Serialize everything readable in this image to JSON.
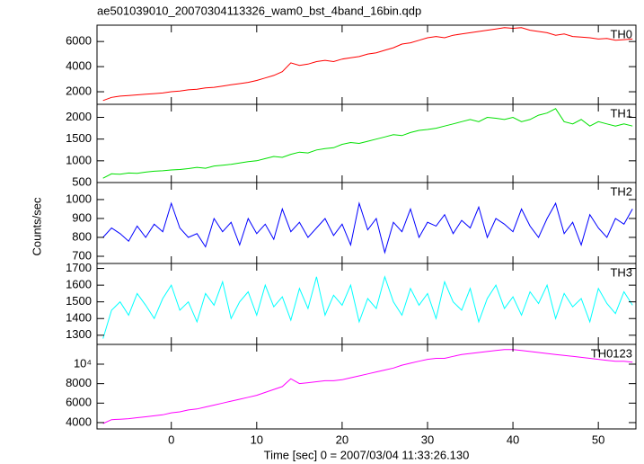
{
  "chart_data": {
    "type": "line",
    "title": "ae501039010_20070304113326_wam0_bst_4band_16bin.qdp",
    "xlabel": "Time [sec] 0 = 2007/03/04 11:33:26.130",
    "ylabel": "Counts/sec",
    "xlim": [
      -8.7,
      54.4
    ],
    "xticks": [
      0,
      10,
      20,
      30,
      40,
      50
    ],
    "x": [
      -8,
      -7,
      -6,
      -5,
      -4,
      -3,
      -2,
      -1,
      0,
      1,
      2,
      3,
      4,
      5,
      6,
      7,
      8,
      9,
      10,
      11,
      12,
      13,
      14,
      15,
      16,
      17,
      18,
      19,
      20,
      21,
      22,
      23,
      24,
      25,
      26,
      27,
      28,
      29,
      30,
      31,
      32,
      33,
      34,
      35,
      36,
      37,
      38,
      39,
      40,
      41,
      42,
      43,
      44,
      45,
      46,
      47,
      48,
      49,
      50,
      51,
      52,
      53,
      54
    ],
    "series": [
      {
        "name": "TH0",
        "color": "#ff0000",
        "ylim": [
          1000,
          7300
        ],
        "yticks": [
          2000,
          4000,
          6000
        ],
        "values": [
          1300,
          1550,
          1650,
          1700,
          1750,
          1800,
          1850,
          1900,
          2000,
          2050,
          2150,
          2200,
          2300,
          2350,
          2450,
          2550,
          2650,
          2750,
          2900,
          3100,
          3300,
          3600,
          4300,
          4100,
          4200,
          4400,
          4500,
          4400,
          4600,
          4700,
          4800,
          5000,
          5100,
          5300,
          5500,
          5800,
          5900,
          6100,
          6300,
          6400,
          6300,
          6500,
          6600,
          6700,
          6800,
          6900,
          7000,
          7100,
          7050,
          7100,
          6900,
          6800,
          6700,
          6500,
          6600,
          6400,
          6350,
          6300,
          6200,
          6250,
          6100,
          6150,
          6200
        ]
      },
      {
        "name": "TH1",
        "color": "#00e000",
        "ylim": [
          500,
          2300
        ],
        "yticks": [
          500,
          1000,
          1500,
          2000
        ],
        "values": [
          600,
          700,
          690,
          720,
          710,
          740,
          760,
          770,
          790,
          800,
          820,
          850,
          830,
          880,
          900,
          920,
          950,
          980,
          1000,
          1050,
          1100,
          1080,
          1150,
          1200,
          1180,
          1250,
          1280,
          1300,
          1380,
          1420,
          1400,
          1450,
          1500,
          1550,
          1600,
          1580,
          1650,
          1700,
          1720,
          1750,
          1800,
          1850,
          1900,
          1950,
          1900,
          2000,
          1980,
          1950,
          2000,
          1900,
          1950,
          2050,
          2100,
          2200,
          1900,
          1850,
          1950,
          1800,
          1900,
          1850,
          1800,
          1850,
          1800
        ]
      },
      {
        "name": "TH2",
        "color": "#0000ff",
        "ylim": [
          662,
          1090
        ],
        "yticks": [
          700,
          800,
          900,
          1000
        ],
        "values": [
          800,
          850,
          820,
          780,
          860,
          800,
          870,
          830,
          980,
          850,
          800,
          820,
          750,
          900,
          830,
          880,
          760,
          900,
          820,
          870,
          790,
          950,
          830,
          880,
          800,
          850,
          900,
          810,
          870,
          760,
          980,
          840,
          900,
          720,
          880,
          830,
          950,
          800,
          880,
          860,
          920,
          820,
          890,
          850,
          960,
          800,
          900,
          870,
          830,
          950,
          860,
          800,
          900,
          980,
          820,
          880,
          760,
          920,
          850,
          800,
          900,
          870,
          950
        ]
      },
      {
        "name": "TH3",
        "color": "#00ffff",
        "ylim": [
          1245,
          1730
        ],
        "yticks": [
          1300,
          1400,
          1500,
          1600,
          1700
        ],
        "values": [
          1280,
          1450,
          1500,
          1420,
          1550,
          1480,
          1400,
          1520,
          1600,
          1450,
          1500,
          1380,
          1550,
          1480,
          1620,
          1400,
          1500,
          1560,
          1420,
          1600,
          1470,
          1530,
          1390,
          1580,
          1460,
          1650,
          1420,
          1540,
          1480,
          1600,
          1380,
          1520,
          1460,
          1650,
          1500,
          1420,
          1580,
          1480,
          1550,
          1400,
          1620,
          1500,
          1450,
          1580,
          1380,
          1520,
          1600,
          1460,
          1530,
          1420,
          1560,
          1490,
          1600,
          1400,
          1550,
          1470,
          1520,
          1380,
          1580,
          1490,
          1430,
          1560,
          1480
        ]
      },
      {
        "name": "TH0123",
        "color": "#ff00ff",
        "ylim": [
          3350,
          12030
        ],
        "yticks": [
          4000,
          6000,
          8000,
          {
            "value": 10000,
            "label": "10⁴"
          }
        ],
        "values": [
          3900,
          4300,
          4350,
          4400,
          4500,
          4600,
          4700,
          4800,
          5000,
          5100,
          5300,
          5400,
          5600,
          5800,
          6000,
          6200,
          6400,
          6600,
          6800,
          7100,
          7400,
          7700,
          8500,
          8000,
          8100,
          8200,
          8300,
          8300,
          8400,
          8600,
          8800,
          9000,
          9200,
          9400,
          9600,
          9900,
          10100,
          10300,
          10500,
          10600,
          10600,
          10800,
          11000,
          11100,
          11200,
          11300,
          11400,
          11500,
          11500,
          11400,
          11300,
          11200,
          11100,
          11000,
          10900,
          10800,
          10700,
          10600,
          10500,
          10400,
          10300,
          10300,
          10200
        ]
      }
    ]
  }
}
